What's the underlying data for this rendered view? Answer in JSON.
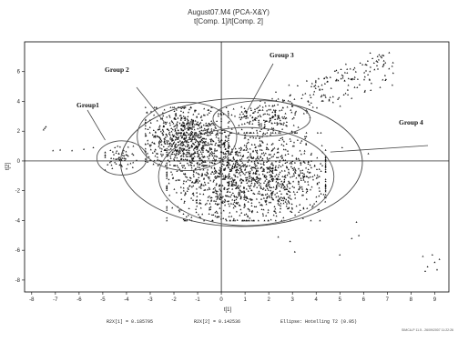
{
  "chart_data": {
    "type": "scatter",
    "title": "August07.M4 (PCA-X&Y)",
    "subtitle": "t[Comp. 1]/t[Comp. 2]",
    "xlabel": "t[1]",
    "ylabel": "t[2]",
    "xlim": [
      -8.3,
      9.6
    ],
    "ylim": [
      -8.8,
      8.0
    ],
    "xticks": [
      -8,
      -7,
      -6,
      -5,
      -4,
      -3,
      -2,
      -1,
      0,
      1,
      2,
      3,
      4,
      5,
      6,
      7,
      8,
      9
    ],
    "yticks": [
      -8,
      -6,
      -4,
      -2,
      0,
      2,
      4,
      6
    ],
    "marker_color": "#111111",
    "groups": [
      {
        "label": "Group1",
        "region": {
          "x": [
            -4.9,
            -3.5
          ],
          "y": [
            -0.6,
            1.0
          ]
        },
        "approx_points": 60
      },
      {
        "label": "Group 2",
        "region": {
          "x": [
            -3.2,
            0.3
          ],
          "y": [
            -0.3,
            3.6
          ]
        },
        "approx_points": 700
      },
      {
        "label": "Group 3",
        "region": {
          "x": [
            0.0,
            3.4
          ],
          "y": [
            2.0,
            3.7
          ]
        },
        "approx_points": 120
      },
      {
        "label": "Group 4",
        "region": {
          "x": [
            -2.3,
            4.4
          ],
          "y": [
            -4.0,
            1.9
          ]
        },
        "approx_points": 1400
      }
    ],
    "outlier_points": [
      {
        "x": -7.5,
        "y": 2.1
      },
      {
        "x": -7.45,
        "y": 2.2
      },
      {
        "x": -7.4,
        "y": 2.3
      },
      {
        "x": -7.1,
        "y": 0.7
      },
      {
        "x": -6.8,
        "y": 0.75
      },
      {
        "x": -6.3,
        "y": 0.7
      },
      {
        "x": -5.8,
        "y": 0.8
      },
      {
        "x": -5.4,
        "y": 0.9
      },
      {
        "x": 2.4,
        "y": -5.1
      },
      {
        "x": 2.9,
        "y": -5.4
      },
      {
        "x": 3.1,
        "y": -6.1
      },
      {
        "x": 5.7,
        "y": -4.1
      },
      {
        "x": 5.5,
        "y": -5.2
      },
      {
        "x": 5.0,
        "y": -6.3
      },
      {
        "x": 5.8,
        "y": -5.0
      },
      {
        "x": 8.5,
        "y": -6.4
      },
      {
        "x": 8.7,
        "y": -7.1
      },
      {
        "x": 9.0,
        "y": -6.8
      },
      {
        "x": 9.2,
        "y": -6.6
      },
      {
        "x": 8.6,
        "y": -7.4
      },
      {
        "x": 9.1,
        "y": -7.3
      },
      {
        "x": 8.9,
        "y": -6.3
      },
      {
        "x": 6.2,
        "y": 0.5
      },
      {
        "x": 3.8,
        "y": 0.0
      },
      {
        "x": 5.1,
        "y": 0.9
      }
    ],
    "diagonal_streak": {
      "from": {
        "x": 1.0,
        "y": 3.0
      },
      "to": {
        "x": 7.1,
        "y": 6.9
      }
    },
    "ellipse": {
      "label": "Ellipse: Hotelling T2 (0.95)",
      "center": {
        "x": 0.85,
        "y": -0.1
      },
      "rx": 5.1,
      "ry": 4.3
    },
    "footer": {
      "r2x1": "R2X[1] = 0.185795",
      "r2x2": "R2X[2] = 0.142536",
      "ellipse_text": "Ellipse: Hotelling T2 (0.95)",
      "software": "SIMCA-P 11.5 - 26/09/2007 11:22:26"
    }
  }
}
